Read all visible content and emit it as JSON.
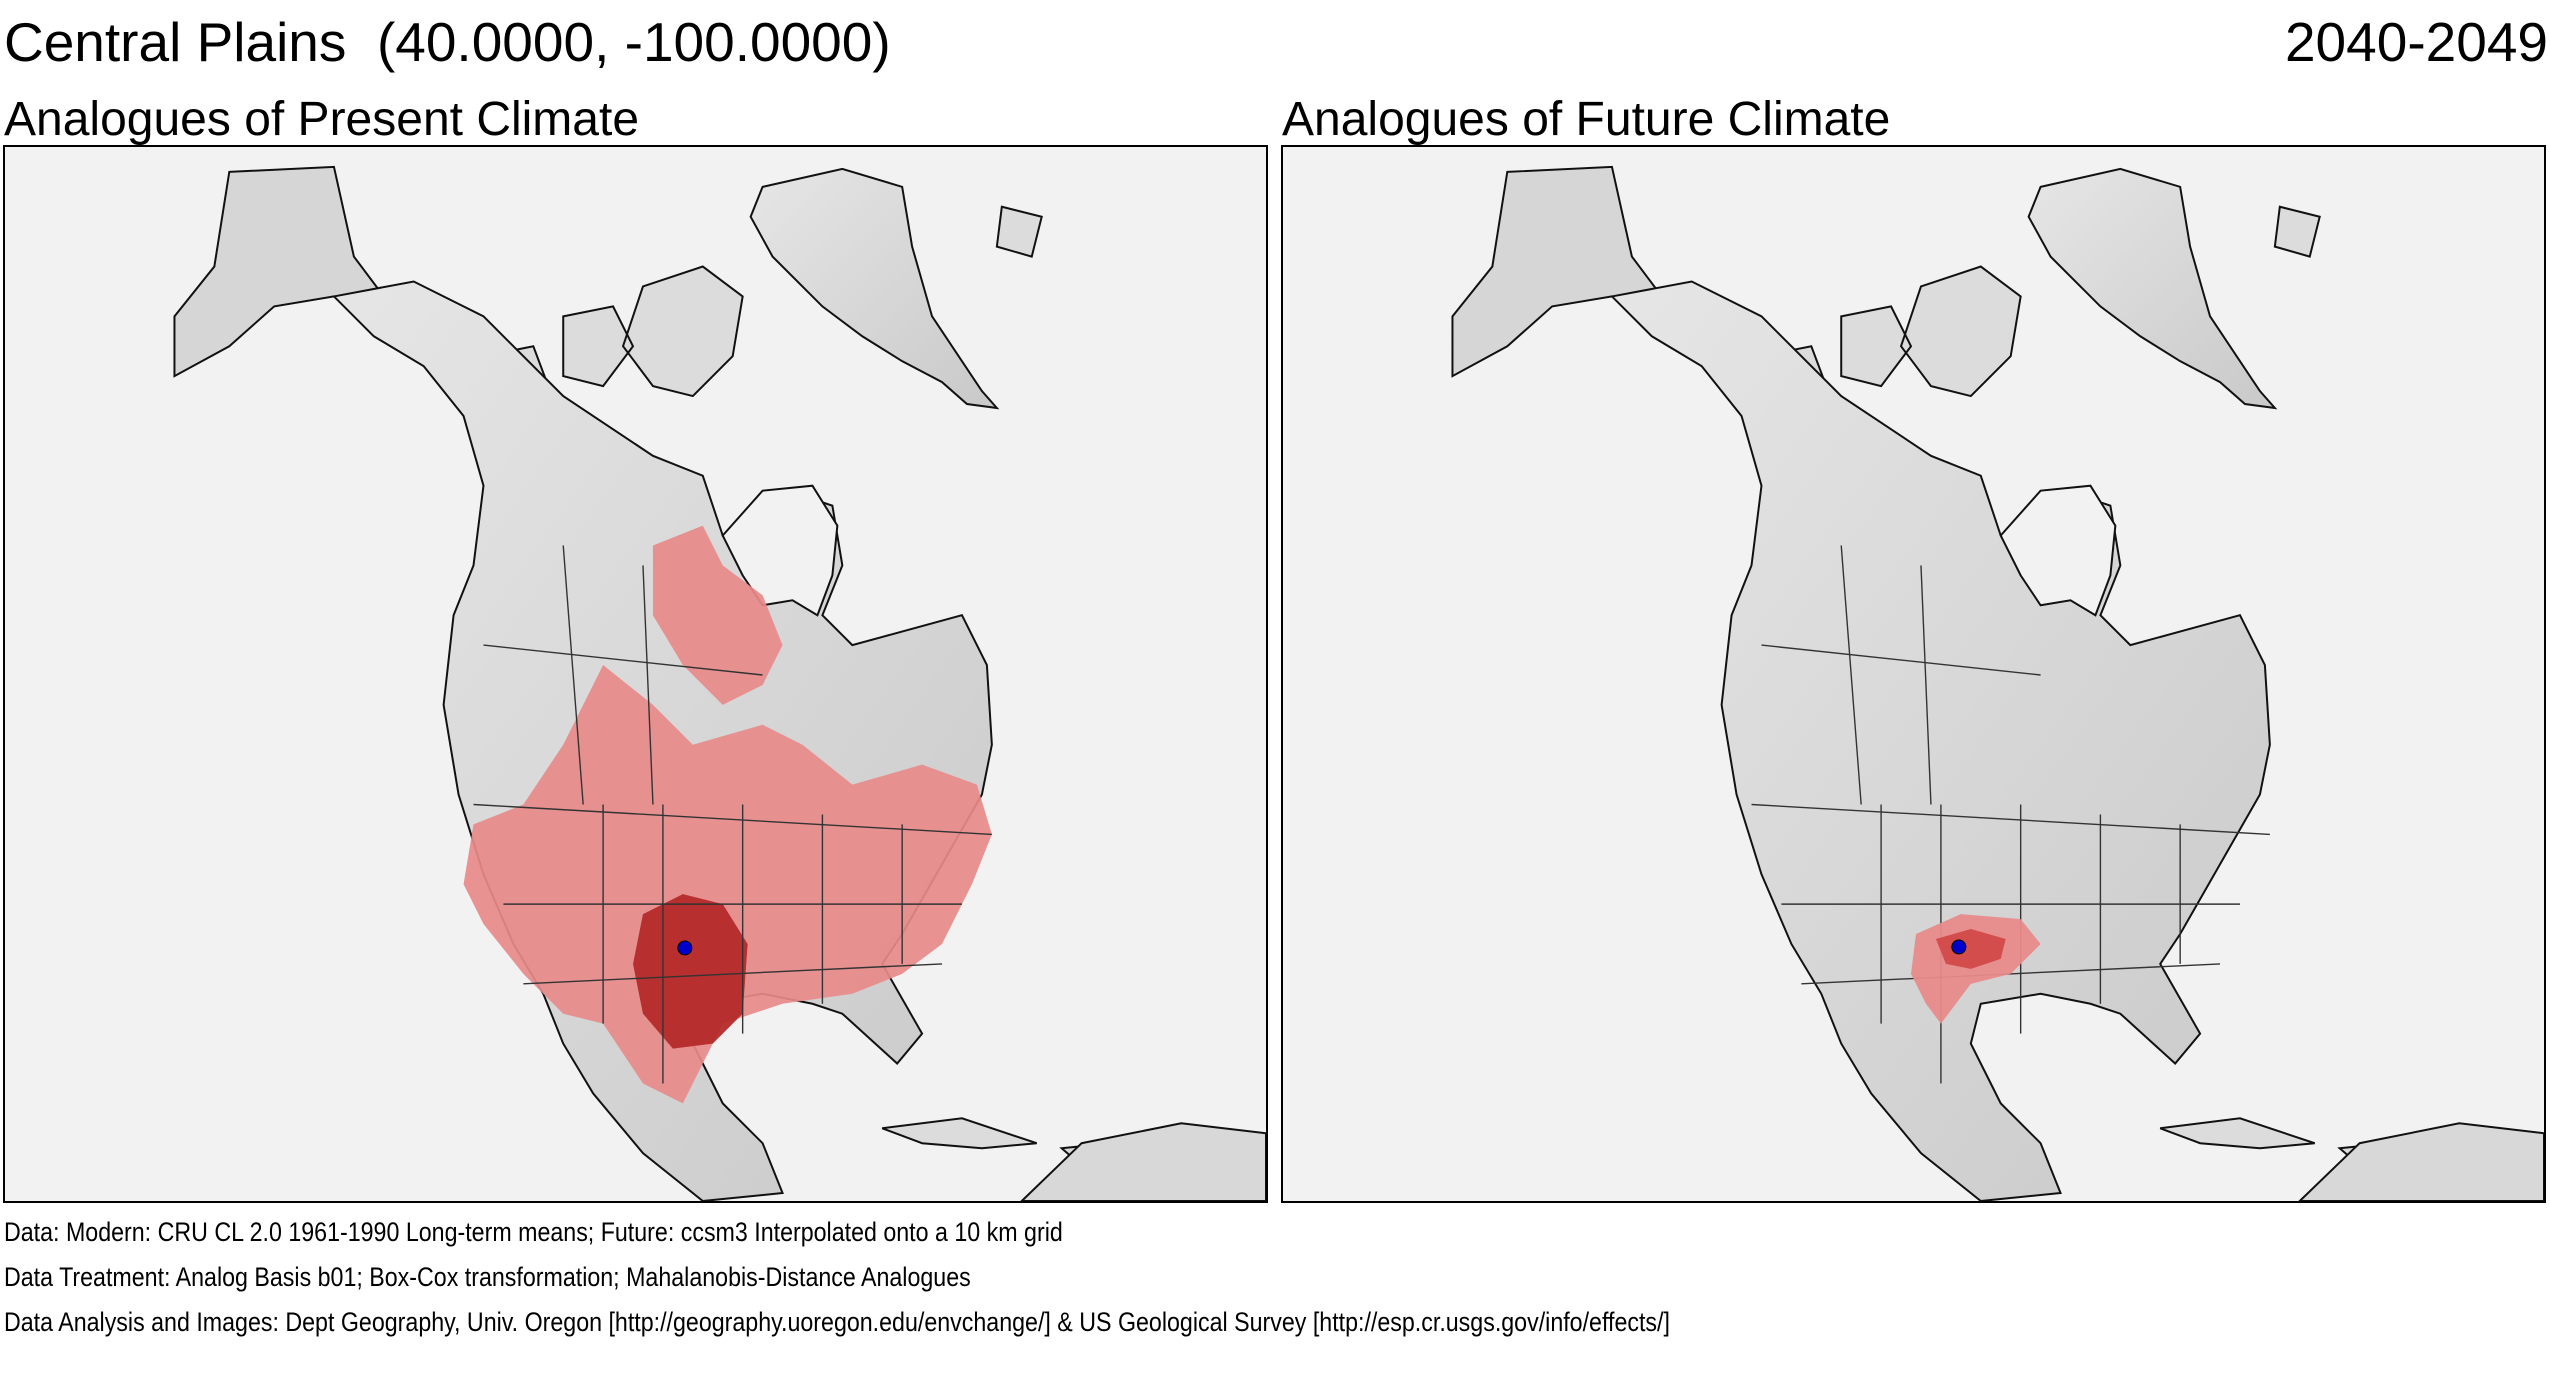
{
  "header": {
    "region_title": "Central Plains  (40.0000, -100.0000)",
    "period": "2040-2049"
  },
  "panels": [
    {
      "title": "Analogues of Present Climate",
      "variant": "present"
    },
    {
      "title": "Analogues of Future Climate",
      "variant": "future"
    }
  ],
  "colors": {
    "ocean": "#f2f2f2",
    "land": "#d9d9d9",
    "analog_light": "#e88a8a",
    "analog_dark": "#b52a2a",
    "target_point": "#0000cc",
    "borders": "#222222"
  },
  "footer": {
    "line1": "Data:  Modern: CRU CL 2.0 1961-1990 Long-term means; Future: ccsm3 Interpolated onto a 10 km grid",
    "line2": "Data Treatment:  Analog Basis b01; Box-Cox transformation; Mahalanobis-Distance Analogues",
    "line3": "Data Analysis and Images:  Dept Geography, Univ. Oregon [http://geography.uoregon.edu/envchange/] & US Geological Survey [http://esp.cr.usgs.gov/info/effects/]"
  }
}
